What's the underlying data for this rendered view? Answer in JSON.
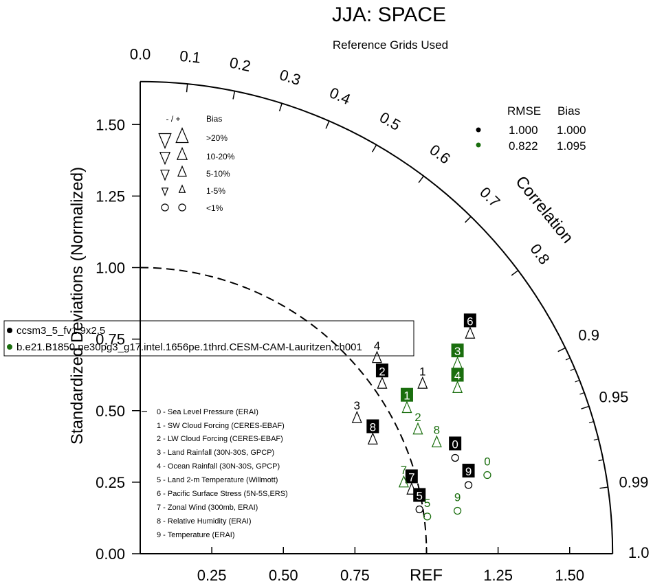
{
  "chart_data": {
    "type": "scatter",
    "subtype": "taylor-diagram",
    "title": "JJA: SPACE",
    "subtitle": "Reference Grids Used",
    "ylabel": "Standardized Deviations (Normalized)",
    "correlation_label": "Correlation",
    "ref_label": "REF",
    "std_range": [
      0,
      1.65
    ],
    "std_ticks": [
      "0.00",
      "0.25",
      "0.50",
      "0.75",
      "1.00",
      "1.25",
      "1.50"
    ],
    "x_ticks": [
      "0.25",
      "0.50",
      "0.75",
      "1.25",
      "1.50"
    ],
    "corr_ticks_inner": [
      "0.0",
      "0.1",
      "0.2",
      "0.3",
      "0.4",
      "0.5",
      "0.6",
      "0.7",
      "0.8"
    ],
    "corr_ticks_outer": [
      "0.9",
      "0.95",
      "0.99",
      "1.0"
    ],
    "legend_bias": {
      "header_signs": "- / +",
      "header_label": "Bias",
      "rows": [
        ">20%",
        "10-20%",
        "5-10%",
        "1-5%",
        "<1%"
      ]
    },
    "legend_cases": {
      "rmse_header": "RMSE",
      "bias_header": "Bias"
    },
    "variables": [
      "0 - Sea Level Pressure (ERAI)",
      "1 - SW Cloud Forcing (CERES-EBAF)",
      "2 - LW Cloud Forcing (CERES-EBAF)",
      "3 - Land Rainfall (30N-30S, GPCP)",
      "4 - Ocean Rainfall (30N-30S, GPCP)",
      "5 - Land 2-m Temperature (Willmott)",
      "6 - Pacific Surface Stress (5N-5S,ERS)",
      "7 - Zonal Wind (300mb, ERAI)",
      "8 - Relative Humidity (ERAI)",
      "9 - Temperature (ERAI)"
    ],
    "series": [
      {
        "name": "ccsm3_5_fv1.9x2.5",
        "color": "#000000",
        "rmse": "1.000",
        "bias": "1.000",
        "points": [
          {
            "id": "0",
            "x": 1.1,
            "y": 0.335,
            "marker": "circle",
            "labeled": true
          },
          {
            "id": "1",
            "x": 0.9863,
            "y": 0.59,
            "marker": "up",
            "labeled": false
          },
          {
            "id": "2",
            "x": 0.845,
            "y": 0.59,
            "marker": "up",
            "labeled": true
          },
          {
            "id": "3",
            "x": 0.757,
            "y": 0.47,
            "marker": "up",
            "labeled": false
          },
          {
            "id": "4",
            "x": 0.827,
            "y": 0.68,
            "marker": "up",
            "labeled": false
          },
          {
            "id": "5",
            "x": 0.9753,
            "y": 0.155,
            "marker": "circle",
            "labeled": true
          },
          {
            "id": "6",
            "x": 1.1521,
            "y": 0.765,
            "marker": "up",
            "labeled": true
          },
          {
            "id": "7",
            "x": 0.9479,
            "y": 0.22,
            "marker": "up",
            "labeled": true
          },
          {
            "id": "8",
            "x": 0.8123,
            "y": 0.395,
            "marker": "up",
            "labeled": true
          },
          {
            "id": "9",
            "x": 1.1466,
            "y": 0.24,
            "marker": "circle",
            "labeled": true
          }
        ]
      },
      {
        "name": "b.e21.B1850.ne30pg3_g17.intel.1656pe.1thrd.CESM-CAM-Lauritzen.ch001",
        "color": "#1a6e0e",
        "rmse": "0.822",
        "bias": "1.095",
        "points": [
          {
            "id": "0",
            "x": 1.2123,
            "y": 0.275,
            "marker": "circle",
            "labeled": false
          },
          {
            "id": "1",
            "x": 0.9315,
            "y": 0.505,
            "marker": "up",
            "labeled": true
          },
          {
            "id": "2",
            "x": 0.9699,
            "y": 0.43,
            "marker": "up",
            "labeled": false
          },
          {
            "id": "3",
            "x": 1.1082,
            "y": 0.66,
            "marker": "up",
            "labeled": true
          },
          {
            "id": "4",
            "x": 1.1082,
            "y": 0.575,
            "marker": "up",
            "labeled": true
          },
          {
            "id": "5",
            "x": 1.0027,
            "y": 0.13,
            "marker": "circle",
            "labeled": false
          },
          {
            "id": "7",
            "x": 0.9205,
            "y": 0.245,
            "marker": "up",
            "labeled": false
          },
          {
            "id": "8",
            "x": 1.0356,
            "y": 0.385,
            "marker": "up",
            "labeled": false
          },
          {
            "id": "9",
            "x": 1.1082,
            "y": 0.15,
            "marker": "circle",
            "labeled": false
          }
        ]
      }
    ]
  }
}
